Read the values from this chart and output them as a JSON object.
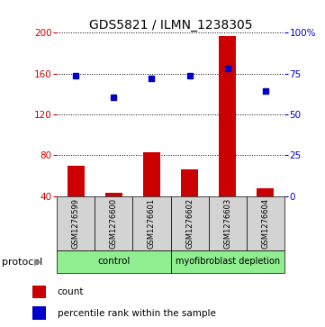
{
  "title": "GDS5821 / ILMN_1238305",
  "samples": [
    "GSM1276599",
    "GSM1276600",
    "GSM1276601",
    "GSM1276602",
    "GSM1276603",
    "GSM1276604"
  ],
  "counts": [
    70,
    43,
    83,
    66,
    197,
    48
  ],
  "percentile_left_axis": [
    158,
    137,
    155,
    158,
    165,
    143
  ],
  "ylim_left": [
    40,
    200
  ],
  "yticks_left": [
    40,
    80,
    120,
    160,
    200
  ],
  "ylim_right": [
    0,
    100
  ],
  "yticks_right": [
    0,
    25,
    50,
    75,
    100
  ],
  "ytick_labels_right": [
    "0",
    "25",
    "50",
    "75",
    "100%"
  ],
  "bar_color": "#cc0000",
  "dot_color": "#0000cc",
  "bar_bottom": 40,
  "control_label": "control",
  "depletion_label": "myofibroblast depletion",
  "group_color": "#90ee90",
  "protocol_label": "protocol",
  "legend_count_label": "count",
  "legend_percentile_label": "percentile rank within the sample",
  "label_color_left": "#cc0000",
  "label_color_right": "#0000cc",
  "background_color": "#ffffff",
  "sample_box_color": "#d3d3d3",
  "title_fontsize": 10,
  "tick_fontsize": 7.5,
  "legend_fontsize": 7.5,
  "protocol_fontsize": 8
}
